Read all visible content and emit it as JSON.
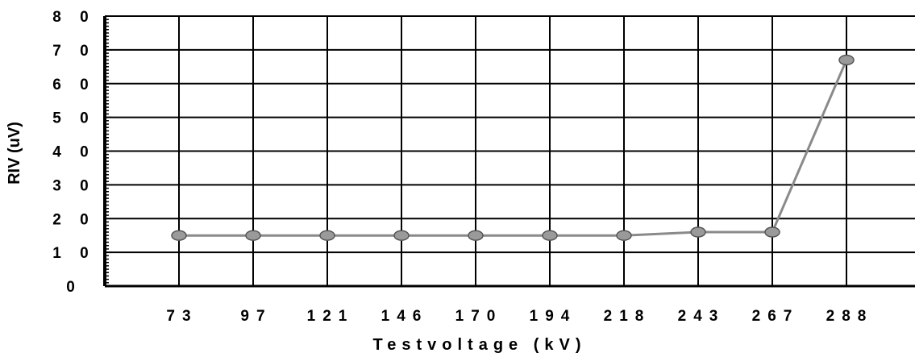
{
  "chart_data": {
    "type": "line",
    "xlabel": "Testvoltage (kV)",
    "ylabel": "RIV (uV)",
    "categories": [
      "73",
      "97",
      "121",
      "146",
      "170",
      "194",
      "218",
      "243",
      "267",
      "288"
    ],
    "series": [
      {
        "values": [
          15,
          15,
          15,
          15,
          15,
          15,
          15,
          16,
          16,
          67
        ]
      }
    ],
    "ylim": [
      0,
      80
    ],
    "yticks": [
      "0",
      "10",
      "20",
      "30",
      "40",
      "50",
      "60",
      "70",
      "80"
    ],
    "grid": true,
    "legend": "none",
    "colors": {
      "line": "#8a8a8a",
      "marker": "#9a9a9a",
      "grid": "#000000"
    }
  }
}
